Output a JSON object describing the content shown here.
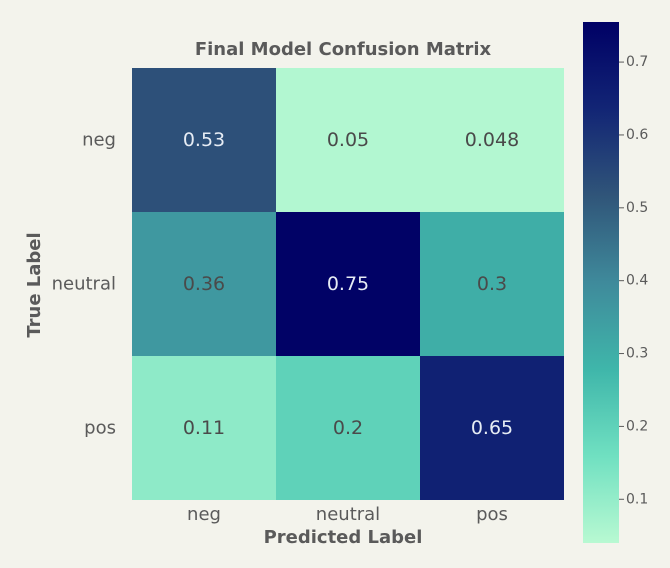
{
  "chart_data": {
    "type": "heatmap",
    "title": "Final Model Confusion Matrix",
    "xlabel": "Predicted Label",
    "ylabel": "True Label",
    "x_categories": [
      "neg",
      "neutral",
      "pos"
    ],
    "y_categories": [
      "neg",
      "neutral",
      "pos"
    ],
    "values": [
      [
        0.53,
        0.05,
        0.048
      ],
      [
        0.36,
        0.75,
        0.3
      ],
      [
        0.11,
        0.2,
        0.65
      ]
    ],
    "value_labels": [
      [
        "0.53",
        "0.05",
        "0.048"
      ],
      [
        "0.36",
        "0.75",
        "0.3"
      ],
      [
        "0.11",
        "0.2",
        "0.65"
      ]
    ],
    "colorbar": {
      "range": [
        0.04,
        0.755
      ],
      "ticks": [
        0.1,
        0.2,
        0.3,
        0.4,
        0.5,
        0.6,
        0.7
      ],
      "tick_labels": [
        "0.1",
        "0.2",
        "0.3",
        "0.4",
        "0.5",
        "0.6",
        "0.7"
      ],
      "colormap_stops": [
        "#b8f9d2",
        "#70e0c1",
        "#3fb6aa",
        "#3f8a9b",
        "#305579",
        "#122575",
        "#000065"
      ]
    }
  }
}
